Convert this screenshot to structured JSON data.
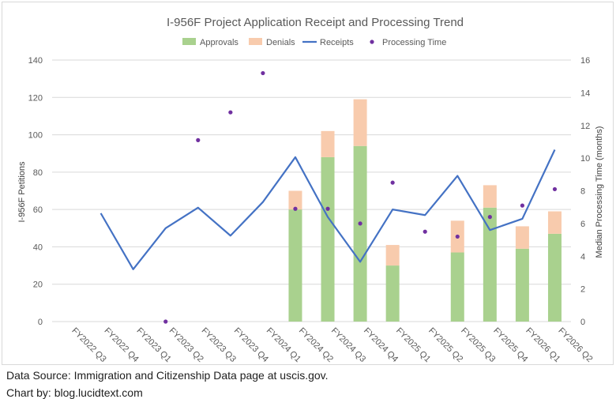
{
  "chart_data": {
    "type": "bar",
    "title": "I-956F Project Application Receipt and Processing Trend",
    "ylabel": "I-956F Petitions",
    "y2label": "Median Processing Time (months)",
    "ylim": [
      0,
      140
    ],
    "y2lim": [
      0,
      16
    ],
    "yticks": [
      0,
      20,
      40,
      60,
      80,
      100,
      120,
      140
    ],
    "y2ticks": [
      0,
      2,
      4,
      6,
      8,
      10,
      12,
      14,
      16
    ],
    "categories": [
      "FY2022 Q3",
      "FY2022 Q4",
      "FY2023 Q1",
      "FY2023 Q2",
      "FY2023 Q3",
      "FY2023 Q4",
      "FY2024 Q1",
      "FY2024 Q2",
      "FY2024 Q3",
      "FY2024 Q4",
      "FY2025 Q1",
      "FY2025 Q2",
      "FY2025 Q3",
      "FY2025 Q4",
      "FY2026 Q1",
      "FY2026 Q2"
    ],
    "legend_position": "top",
    "grid": true,
    "series": [
      {
        "name": "Approvals",
        "kind": "stacked-bar",
        "axis": "left",
        "color": "#a9d18e",
        "values": [
          null,
          null,
          null,
          null,
          null,
          null,
          null,
          60,
          88,
          94,
          30,
          null,
          37,
          61,
          39,
          47
        ]
      },
      {
        "name": "Denials",
        "kind": "stacked-bar",
        "axis": "left",
        "color": "#f8cbad",
        "values": [
          null,
          null,
          null,
          null,
          null,
          null,
          null,
          10,
          14,
          25,
          11,
          null,
          17,
          12,
          12,
          12
        ]
      },
      {
        "name": "Receipts",
        "kind": "line",
        "axis": "left",
        "color": "#4472c4",
        "values": [
          null,
          58,
          28,
          50,
          61,
          46,
          64,
          88,
          56,
          32,
          60,
          57,
          78,
          49,
          55,
          92
        ]
      },
      {
        "name": "Processing Time",
        "kind": "scatter",
        "axis": "right",
        "color": "#7030a0",
        "values": [
          null,
          null,
          null,
          0,
          11.1,
          12.8,
          15.2,
          6.9,
          6.9,
          6.0,
          8.5,
          5.5,
          5.2,
          6.4,
          7.1,
          8.1
        ]
      }
    ]
  },
  "footer": {
    "source": "Data Source: Immigration and Citizenship Data page at uscis.gov.",
    "credit": "Chart by: blog.lucidtext.com"
  }
}
